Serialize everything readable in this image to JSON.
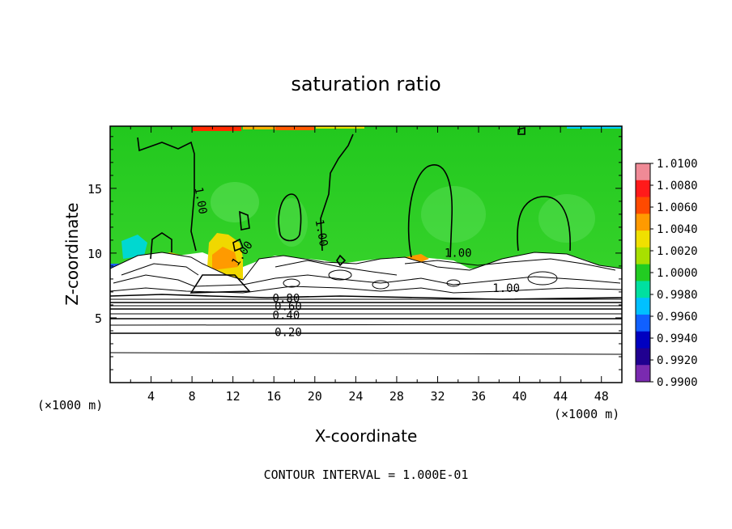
{
  "chart_data": {
    "type": "heatmap",
    "title": "saturation ratio",
    "xlabel": "X-coordinate",
    "ylabel": "Z-coordinate",
    "x_unit_label": "(×1000 m)",
    "x_unit_label_right": "(×1000 m)",
    "xlim": [
      0,
      50
    ],
    "ylim": [
      0,
      19.8
    ],
    "x_ticks": [
      4,
      8,
      12,
      16,
      20,
      24,
      28,
      32,
      36,
      40,
      44,
      48
    ],
    "y_ticks": [
      5,
      10,
      15
    ],
    "grid": false,
    "footer": "CONTOUR INTERVAL = 1.000E-01",
    "contour_labels": [
      {
        "text": "1.00",
        "x": 8.5,
        "z": 14.0
      },
      {
        "text": "1.00",
        "x": 13.2,
        "z": 9.8
      },
      {
        "text": "1.00",
        "x": 20.3,
        "z": 11.5
      },
      {
        "text": "1.00",
        "x": 34.0,
        "z": 9.7
      },
      {
        "text": "1.00",
        "x": 38.7,
        "z": 7.0
      },
      {
        "text": "0.80",
        "x": 17.2,
        "z": 6.2
      },
      {
        "text": "0.60",
        "x": 17.4,
        "z": 5.6
      },
      {
        "text": "0.40",
        "x": 17.2,
        "z": 4.9
      },
      {
        "text": "0.20",
        "x": 17.4,
        "z": 3.6
      }
    ],
    "colorbar": {
      "labels": [
        "1.0100",
        "1.0080",
        "1.0060",
        "1.0040",
        "1.0020",
        "1.0000",
        "0.9980",
        "0.9960",
        "0.9940",
        "0.9920",
        "0.9900"
      ],
      "colors": [
        "#f08a96",
        "#ff1a1a",
        "#ff4a00",
        "#ff9a00",
        "#f0e000",
        "#a8e000",
        "#22cc22",
        "#00e0a0",
        "#00c0ff",
        "#1060ff",
        "#0000c0",
        "#200090",
        "#7a2ab0"
      ]
    }
  }
}
